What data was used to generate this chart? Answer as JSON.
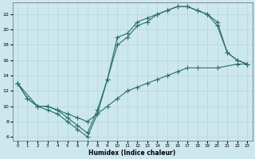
{
  "xlabel": "Humidex (Indice chaleur)",
  "bg_color": "#cce8ee",
  "line_color": "#2a6e68",
  "grid_color": "#b8d8de",
  "xlim": [
    -0.5,
    23.5
  ],
  "ylim": [
    5.5,
    23.5
  ],
  "xticks": [
    0,
    1,
    2,
    3,
    4,
    5,
    6,
    7,
    8,
    9,
    10,
    11,
    12,
    13,
    14,
    15,
    16,
    17,
    18,
    19,
    20,
    21,
    22,
    23
  ],
  "yticks": [
    6,
    8,
    10,
    12,
    14,
    16,
    18,
    20,
    22
  ],
  "line1_x": [
    0,
    1,
    2,
    3,
    4,
    5,
    6,
    7,
    8,
    9,
    10,
    11,
    12,
    13,
    14,
    15,
    16,
    17,
    18,
    19,
    20,
    21,
    22,
    23
  ],
  "line1_y": [
    13,
    11,
    10,
    9.5,
    9,
    8,
    7,
    6,
    9,
    13.5,
    18,
    19,
    20.5,
    21,
    22,
    22.5,
    23,
    23,
    22.5,
    22,
    20.5,
    17,
    16,
    15.5
  ],
  "line2_x": [
    0,
    1,
    2,
    3,
    4,
    5,
    6,
    7,
    8,
    9,
    10,
    11,
    12,
    13,
    14,
    15,
    16,
    17,
    18,
    19,
    20,
    21,
    22,
    23
  ],
  "line2_y": [
    13,
    11,
    10,
    10,
    9.5,
    8.5,
    7.5,
    6.5,
    9.5,
    13.5,
    19,
    19.5,
    21,
    21.5,
    22,
    22.5,
    23,
    23,
    22.5,
    22,
    21,
    17,
    16,
    15.5
  ],
  "line3_x": [
    0,
    2,
    3,
    4,
    5,
    6,
    7,
    8,
    9,
    10,
    11,
    12,
    13,
    14,
    15,
    16,
    17,
    18,
    20,
    22,
    23
  ],
  "line3_y": [
    13,
    10,
    10,
    9.5,
    9,
    8.5,
    8,
    9,
    10,
    11,
    12,
    12.5,
    13,
    13.5,
    14,
    14.5,
    15,
    15,
    15,
    15.5,
    15.5
  ]
}
